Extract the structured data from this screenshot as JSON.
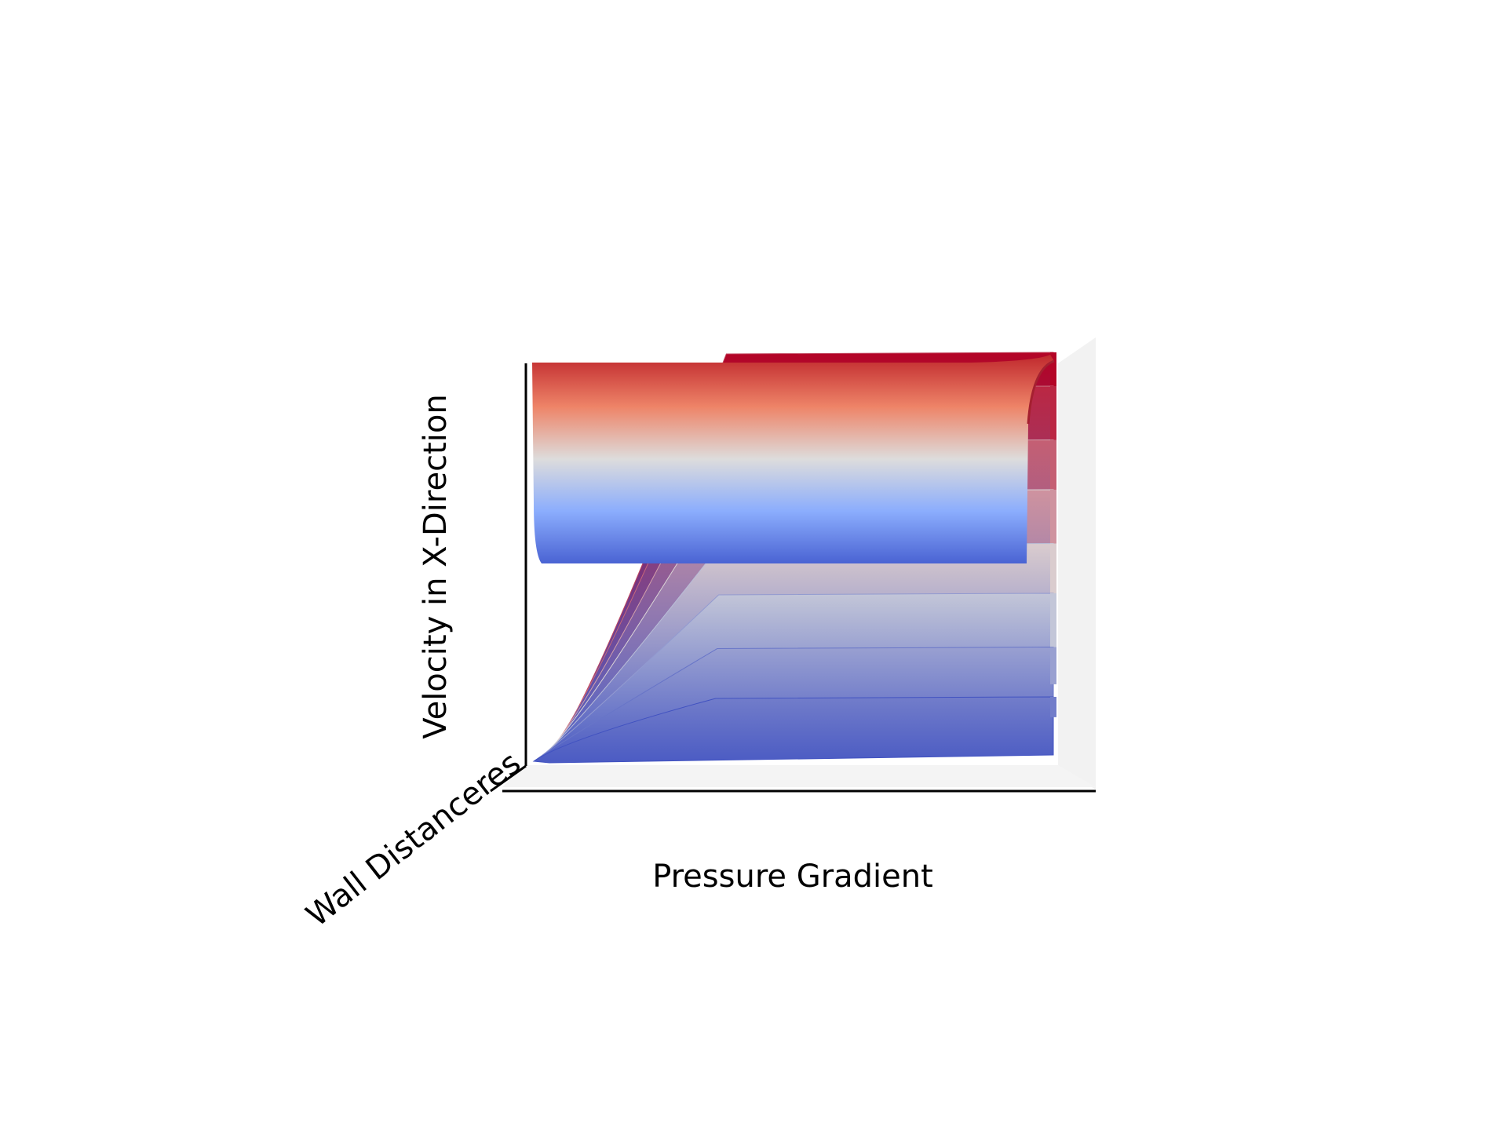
{
  "chart_data": {
    "type": "surface",
    "title": "",
    "xlabel": "Pressure Gradient",
    "ylabel": "Wall Distanceres",
    "zlabel": "Velocity in X-Direction",
    "colormap": "coolwarm",
    "colormap_low": "#3b4cc0",
    "colormap_mid": "#dddddd",
    "colormap_high": "#b40426",
    "tick_labels_shown": false,
    "grid": false,
    "profiles": [
      {
        "velocity_fraction": 0.17
      },
      {
        "velocity_fraction": 0.29
      },
      {
        "velocity_fraction": 0.42
      },
      {
        "velocity_fraction": 0.54
      },
      {
        "velocity_fraction": 0.67
      },
      {
        "velocity_fraction": 0.79
      },
      {
        "velocity_fraction": 0.92
      },
      {
        "velocity_fraction": 1.0
      }
    ]
  }
}
